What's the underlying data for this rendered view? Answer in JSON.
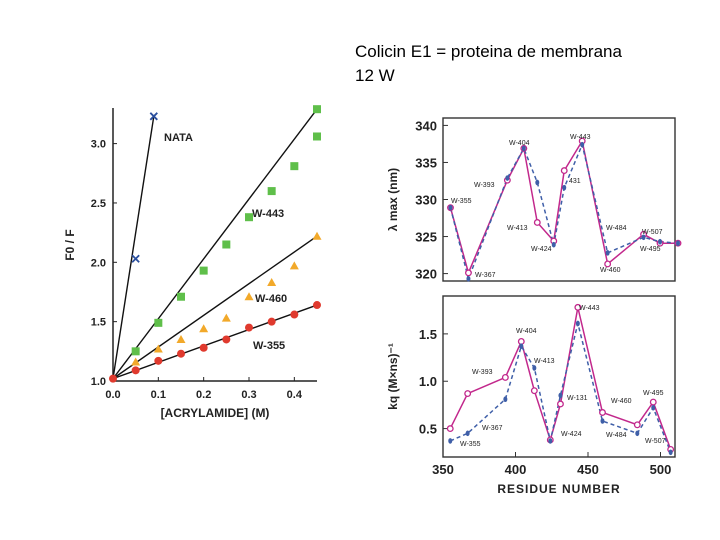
{
  "slide": {
    "title_line1": "Colicin E1 = proteina de membrana",
    "title_line2": "12 W"
  },
  "colors": {
    "nata": "#2b4f9e",
    "w443": "#5fbf4a",
    "w460": "#f2a92a",
    "w355": "#e03a2e",
    "solid_series": "#c2288c",
    "dashed_series": "#3f5fa8"
  },
  "chart_data": [
    {
      "type": "line",
      "title": "",
      "xlabel": "[ACRYLAMIDE] (M)",
      "ylabel": "F0 / F",
      "xlim": [
        0.0,
        0.45
      ],
      "ylim": [
        1.0,
        3.3
      ],
      "xticks": [
        "0.0",
        "0.1",
        "0.2",
        "0.3",
        "0.4"
      ],
      "yticks": [
        "1.0",
        "1.5",
        "2.0",
        "2.5",
        "3.0"
      ],
      "series": [
        {
          "name": "NATA",
          "marker": "x",
          "color": "#2b4f9e",
          "points": [
            [
              0.0,
              1.02
            ],
            [
              0.05,
              2.03
            ],
            [
              0.09,
              3.23
            ]
          ]
        },
        {
          "name": "W-443",
          "marker": "square",
          "color": "#5fbf4a",
          "points": [
            [
              0.0,
              1.02
            ],
            [
              0.05,
              1.25
            ],
            [
              0.1,
              1.49
            ],
            [
              0.15,
              1.71
            ],
            [
              0.2,
              1.93
            ],
            [
              0.25,
              2.15
            ],
            [
              0.3,
              2.38
            ],
            [
              0.35,
              2.6
            ],
            [
              0.4,
              2.81
            ],
            [
              0.45,
              3.06
            ],
            [
              0.45,
              3.29
            ]
          ]
        },
        {
          "name": "W-460",
          "marker": "triangle",
          "color": "#f2a92a",
          "points": [
            [
              0.0,
              1.02
            ],
            [
              0.05,
              1.16
            ],
            [
              0.1,
              1.27
            ],
            [
              0.15,
              1.35
            ],
            [
              0.2,
              1.44
            ],
            [
              0.25,
              1.53
            ],
            [
              0.3,
              1.71
            ],
            [
              0.35,
              1.83
            ],
            [
              0.4,
              1.97
            ],
            [
              0.45,
              2.22
            ]
          ]
        },
        {
          "name": "W-355",
          "marker": "circle",
          "color": "#e03a2e",
          "points": [
            [
              0.0,
              1.02
            ],
            [
              0.05,
              1.09
            ],
            [
              0.1,
              1.17
            ],
            [
              0.15,
              1.23
            ],
            [
              0.2,
              1.28
            ],
            [
              0.25,
              1.35
            ],
            [
              0.3,
              1.45
            ],
            [
              0.35,
              1.5
            ],
            [
              0.4,
              1.56
            ],
            [
              0.45,
              1.64
            ]
          ]
        }
      ]
    },
    {
      "type": "line",
      "title": "",
      "xlabel": "",
      "ylabel": "λ max (nm)",
      "xlim": [
        350,
        505
      ],
      "ylim": [
        319,
        341
      ],
      "yticks": [
        "320",
        "325",
        "330",
        "335",
        "340"
      ],
      "series": [
        {
          "name": "solid",
          "style": "solid",
          "color": "#c2288c",
          "marker": "open-circle",
          "x": [
            355,
            367,
            393,
            404,
            413,
            424,
            431,
            443,
            460,
            484,
            495,
            507
          ],
          "y": [
            328.9,
            320.1,
            332.6,
            336.9,
            326.9,
            324.4,
            333.9,
            337.9,
            321.3,
            325.3,
            324.1,
            324.1
          ]
        },
        {
          "name": "dashed",
          "style": "dashed",
          "color": "#3f5fa8",
          "marker": "dot",
          "x": [
            355,
            367,
            393,
            404,
            413,
            424,
            431,
            443,
            460,
            484,
            495,
            507
          ],
          "y": [
            328.9,
            319.3,
            332.9,
            336.9,
            332.3,
            323.9,
            331.6,
            337.4,
            322.8,
            324.9,
            324.3,
            324.1
          ]
        }
      ],
      "annotations": [
        "W-404",
        "W-443",
        "W-393",
        "W-355",
        "431",
        "W-413",
        "W-424",
        "W-367",
        "W-484",
        "W-507",
        "W-495",
        "W-460"
      ]
    },
    {
      "type": "line",
      "title": "",
      "xlabel": "RESIDUE NUMBER",
      "ylabel": "kq (M×ns)⁻¹",
      "xlim": [
        350,
        510
      ],
      "ylim": [
        0.2,
        1.9
      ],
      "xticks": [
        "350",
        "400",
        "450",
        "500"
      ],
      "yticks": [
        "0.5",
        "1.0",
        "1.5"
      ],
      "series": [
        {
          "name": "solid",
          "style": "solid",
          "color": "#c2288c",
          "marker": "open-circle",
          "x": [
            355,
            367,
            393,
            404,
            413,
            424,
            431,
            443,
            460,
            484,
            495,
            507
          ],
          "y": [
            0.5,
            0.87,
            1.04,
            1.42,
            0.9,
            0.38,
            0.76,
            1.78,
            0.67,
            0.54,
            0.78,
            0.28
          ]
        },
        {
          "name": "dashed",
          "style": "dashed",
          "color": "#3f5fa8",
          "marker": "dot",
          "x": [
            355,
            367,
            393,
            404,
            413,
            424,
            431,
            443,
            460,
            484,
            495,
            507
          ],
          "y": [
            0.37,
            0.45,
            0.81,
            1.37,
            1.14,
            0.37,
            0.85,
            1.61,
            0.58,
            0.45,
            0.72,
            0.25
          ]
        }
      ],
      "annotations": [
        "W-443",
        "W-404",
        "W-413",
        "W-393",
        "W-131",
        "W-460",
        "W-495",
        "W-367",
        "W-355",
        "W-424",
        "W-484",
        "W-507"
      ]
    }
  ]
}
